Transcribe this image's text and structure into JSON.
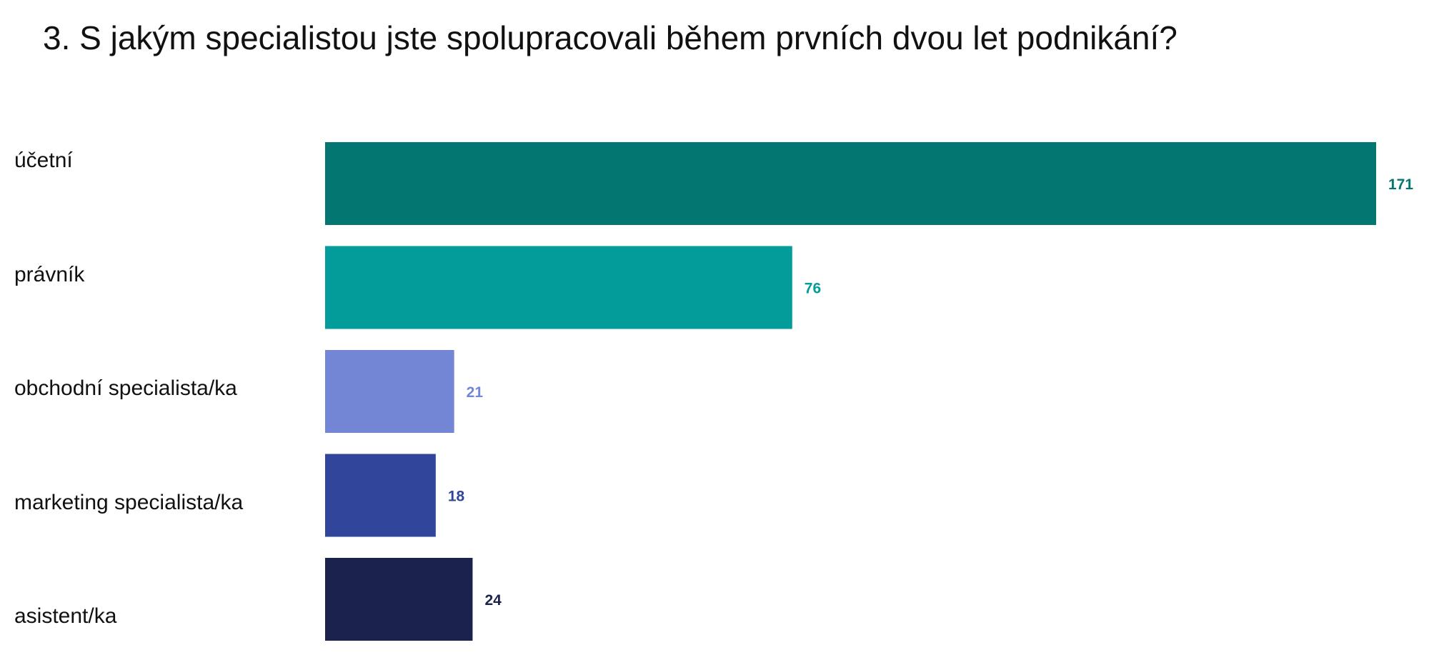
{
  "title": "3. S jakým specialistou jste spolupracovali během prvních dvou let podnikání?",
  "chart_data": {
    "type": "bar",
    "orientation": "horizontal",
    "title": "3. S jakým specialistou jste spolupracovali během prvních dvou let podnikání?",
    "categories": [
      "účetní",
      "právník",
      "obchodní specialista/ka",
      "marketing specialista/ka",
      "asistent/ka"
    ],
    "values": [
      171,
      76,
      21,
      18,
      24
    ],
    "colors": [
      "#037672",
      "#029d9a",
      "#7286d5",
      "#31459b",
      "#1b234d"
    ],
    "xlabel": "",
    "ylabel": "",
    "xlim": [
      0,
      171
    ],
    "grid": false,
    "legend": "none",
    "data_labels": true
  }
}
